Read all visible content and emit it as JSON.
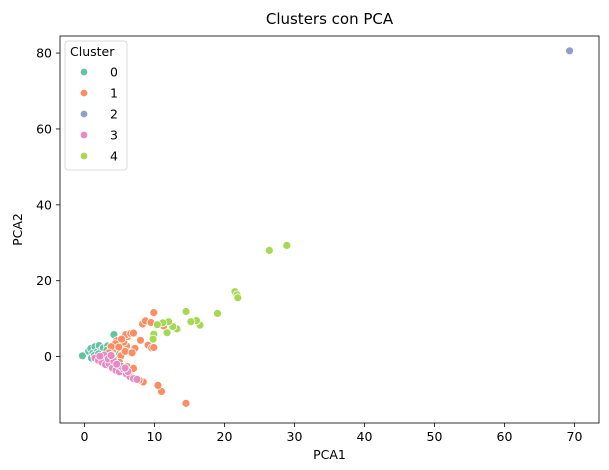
{
  "chart_data": {
    "type": "scatter",
    "title": "Clusters con PCA",
    "xlabel": "PCA1",
    "ylabel": "PCA2",
    "xlim": [
      -3.5,
      73.5
    ],
    "ylim": [
      -17.5,
      84.5
    ],
    "xticks": [
      0,
      10,
      20,
      30,
      40,
      50,
      60,
      70
    ],
    "yticks": [
      0,
      20,
      40,
      60,
      80
    ],
    "grid": false,
    "legend": {
      "title": "Cluster",
      "placement": "top-left"
    },
    "series": [
      {
        "name": "0",
        "color": "#66c2a5",
        "points": [
          [
            -0.3,
            0.2
          ],
          [
            4.2,
            5.8
          ],
          [
            0.6,
            1.4
          ],
          [
            0.9,
            2.1
          ],
          [
            1.2,
            0.9
          ],
          [
            1.5,
            2.6
          ],
          [
            1.8,
            1.2
          ],
          [
            2.1,
            2.9
          ],
          [
            2.4,
            1.6
          ],
          [
            2.7,
            2.3
          ],
          [
            3.0,
            0.5
          ],
          [
            3.3,
            2.8
          ],
          [
            3.6,
            1.1
          ],
          [
            1.0,
            -0.4
          ],
          [
            1.4,
            0.3
          ],
          [
            2.0,
            0.7
          ],
          [
            2.6,
            -0.2
          ],
          [
            3.2,
            1.7
          ],
          [
            3.9,
            2.2
          ],
          [
            4.5,
            1.3
          ]
        ]
      },
      {
        "name": "1",
        "color": "#fc8d62",
        "points": [
          [
            14.5,
            -12.3
          ],
          [
            11.0,
            -9.2
          ],
          [
            10.5,
            -7.6
          ],
          [
            8.4,
            -6.7
          ],
          [
            7.8,
            -6.2
          ],
          [
            6.5,
            -4.8
          ],
          [
            5.5,
            -3.5
          ],
          [
            4.8,
            -2.1
          ],
          [
            5.2,
            0.2
          ],
          [
            4.0,
            1.5
          ],
          [
            6.0,
            2.8
          ],
          [
            7.2,
            2.2
          ],
          [
            5.6,
            3.8
          ],
          [
            4.6,
            4.2
          ],
          [
            6.2,
            5.3
          ],
          [
            5.9,
            5.8
          ],
          [
            6.6,
            6.1
          ],
          [
            7.0,
            6.2
          ],
          [
            8.3,
            8.6
          ],
          [
            8.7,
            9.4
          ],
          [
            9.9,
            11.6
          ],
          [
            9.5,
            9.0
          ],
          [
            8.0,
            4.3
          ],
          [
            9.1,
            3.0
          ],
          [
            9.6,
            2.3
          ],
          [
            9.9,
            2.4
          ],
          [
            10.7,
            8.6
          ],
          [
            11.3,
            8.1
          ],
          [
            4.4,
            3.4
          ],
          [
            3.8,
            2.6
          ],
          [
            3.5,
            1.0
          ],
          [
            4.2,
            -0.8
          ],
          [
            5.0,
            -1.5
          ],
          [
            6.1,
            -2.6
          ],
          [
            7.0,
            -3.1
          ],
          [
            5.8,
            1.4
          ],
          [
            4.9,
            2.5
          ],
          [
            3.9,
            0.4
          ],
          [
            6.8,
            1.0
          ],
          [
            5.3,
            4.6
          ]
        ]
      },
      {
        "name": "2",
        "color": "#8da0cb",
        "points": [
          [
            69.3,
            80.6
          ]
        ]
      },
      {
        "name": "3",
        "color": "#e78ac3",
        "points": [
          [
            1.5,
            -0.4
          ],
          [
            2.0,
            -1.0
          ],
          [
            2.5,
            -1.5
          ],
          [
            3.0,
            -2.1
          ],
          [
            3.5,
            -1.8
          ],
          [
            4.0,
            -3.0
          ],
          [
            4.5,
            -3.6
          ],
          [
            5.0,
            -4.0
          ],
          [
            5.5,
            -3.2
          ],
          [
            6.0,
            -4.6
          ],
          [
            6.5,
            -5.3
          ],
          [
            7.0,
            -5.8
          ],
          [
            7.5,
            -6.0
          ],
          [
            2.8,
            0.4
          ],
          [
            3.4,
            -0.6
          ],
          [
            4.2,
            -1.2
          ],
          [
            5.2,
            -2.5
          ],
          [
            6.2,
            -3.9
          ],
          [
            3.8,
            0.3
          ],
          [
            2.2,
            0.1
          ],
          [
            4.6,
            -2.0
          ],
          [
            5.8,
            -3.0
          ]
        ]
      },
      {
        "name": "4",
        "color": "#a6d854",
        "points": [
          [
            28.9,
            29.3
          ],
          [
            26.4,
            28.0
          ],
          [
            21.5,
            17.1
          ],
          [
            21.8,
            16.3
          ],
          [
            21.9,
            15.5
          ],
          [
            19.0,
            11.4
          ],
          [
            16.5,
            8.3
          ],
          [
            16.0,
            9.5
          ],
          [
            15.2,
            9.2
          ],
          [
            14.5,
            11.9
          ],
          [
            13.2,
            7.3
          ],
          [
            12.6,
            7.9
          ],
          [
            12.0,
            9.2
          ],
          [
            11.2,
            8.9
          ],
          [
            10.4,
            8.4
          ],
          [
            9.9,
            5.9
          ],
          [
            9.8,
            4.6
          ],
          [
            11.8,
            6.3
          ]
        ]
      }
    ]
  }
}
